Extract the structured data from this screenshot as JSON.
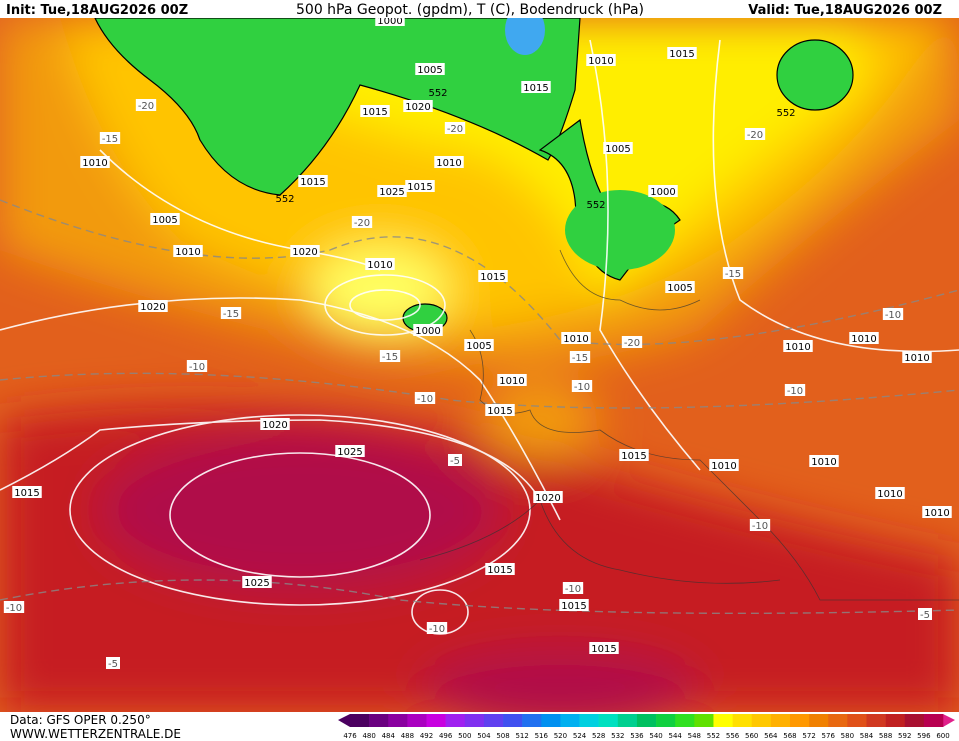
{
  "header": {
    "init": "Init: Tue,18AUG2026 00Z",
    "title": "500 hPa Geopot. (gpdm), T (C), Bodendruck (hPa)",
    "valid": "Valid: Tue,18AUG2026 00Z"
  },
  "footer": {
    "source": "Data: GFS OPER 0.250°",
    "site": "WWW.WETTERZENTRALE.DE"
  },
  "map": {
    "isobars": [
      1005,
      1015,
      1020,
      1010,
      1015,
      1025,
      1015,
      1015,
      1015,
      1010,
      1005,
      1000,
      1010,
      1005,
      1010,
      1020,
      1010,
      1015,
      1005,
      1020,
      1000,
      1005,
      1010,
      1010,
      1015,
      1010,
      1010,
      1010,
      1020,
      1025,
      1015,
      1010,
      1010,
      1015,
      1020,
      1010,
      1010,
      1015,
      1025,
      1015,
      1015,
      1000
    ],
    "temperatures": [
      -20,
      -15,
      -20,
      -15,
      -10,
      -15,
      -10,
      -15,
      -20,
      -10,
      -15,
      -20,
      -10,
      -10,
      -5,
      -10,
      -10,
      -10,
      -10,
      -5,
      -5,
      -20
    ],
    "geopotential": [
      552,
      552,
      552,
      552
    ]
  },
  "scale": {
    "values": [
      476,
      480,
      484,
      488,
      492,
      496,
      500,
      504,
      508,
      512,
      516,
      520,
      524,
      528,
      532,
      536,
      540,
      544,
      548,
      552,
      556,
      560,
      564,
      568,
      572,
      576,
      580,
      584,
      588,
      592,
      596,
      600
    ],
    "colors": [
      "#4b0060",
      "#6a0080",
      "#8a00a0",
      "#aa00c0",
      "#c800e0",
      "#a020f0",
      "#8030f0",
      "#6040f0",
      "#4050f0",
      "#2070f0",
      "#0090f0",
      "#00b0f0",
      "#00d0e0",
      "#00e0c0",
      "#00d090",
      "#00c060",
      "#10d040",
      "#30e020",
      "#60e000",
      "#ffff00",
      "#ffe000",
      "#ffc800",
      "#ffb000",
      "#ff9800",
      "#f08000",
      "#e86810",
      "#e05018",
      "#d03820",
      "#c02020",
      "#a81030",
      "#b80050"
    ]
  }
}
